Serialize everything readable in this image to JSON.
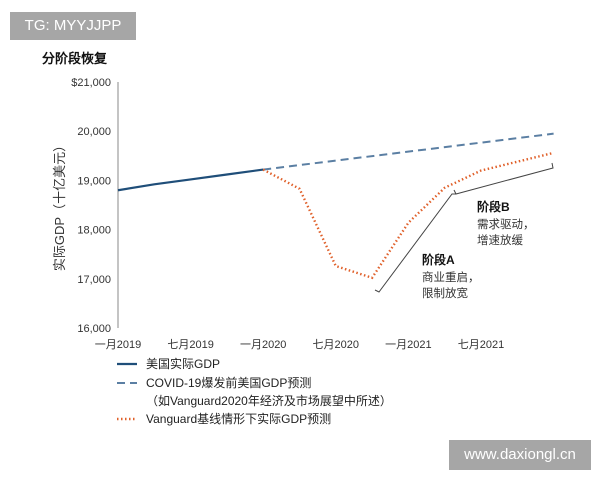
{
  "watermarks": {
    "top_left": "TG: MYYJJPP",
    "bottom_right": "www.daxiongl.cn"
  },
  "chart_data": {
    "type": "line",
    "title": "分阶段恢复",
    "ylabel": "实际GDP（十亿美元）",
    "xlabel": "",
    "ylim": [
      16000,
      21000
    ],
    "yticks": [
      "$21,000",
      "20,000",
      "19,000",
      "18,000",
      "17,000",
      "16,000"
    ],
    "ytick_values": [
      21000,
      20000,
      19000,
      18000,
      17000,
      16000
    ],
    "xticks": [
      "一月2019",
      "七月2019",
      "一月2020",
      "七月2020",
      "一月2021",
      "七月2021"
    ],
    "xtick_values": [
      "2019-01",
      "2019-07",
      "2020-01",
      "2020-07",
      "2021-01",
      "2021-07"
    ],
    "xlim": [
      "2019-01",
      "2022-01"
    ],
    "grid": false,
    "legend_position": "bottom",
    "series": [
      {
        "name": "美国实际GDP",
        "style": "solid",
        "color": "#1f4e79",
        "x": [
          "2019-01",
          "2019-04",
          "2019-07",
          "2019-10",
          "2020-01"
        ],
        "values": [
          18800,
          18920,
          19020,
          19120,
          19220
        ]
      },
      {
        "name": "COVID-19爆发前美国GDP预测",
        "name_line2": "（如Vanguard2020年经济及市场展望中所述）",
        "style": "dashed",
        "color": "#5b7fa3",
        "x": [
          "2020-01",
          "2022-01"
        ],
        "values": [
          19220,
          19950
        ]
      },
      {
        "name": "Vanguard基线情形下实际GDP预测",
        "style": "dotted",
        "color": "#e0602a",
        "x": [
          "2020-01",
          "2020-04",
          "2020-07",
          "2020-10",
          "2021-01",
          "2021-04",
          "2021-07",
          "2022-01"
        ],
        "values": [
          19220,
          18830,
          17260,
          17020,
          18140,
          18850,
          19200,
          19560
        ]
      }
    ],
    "annotations": [
      {
        "label": "阶段A",
        "line1": "商业重启，",
        "line2": "限制放宽"
      },
      {
        "label": "阶段B",
        "line1": "需求驱动，",
        "line2": "增速放缓"
      }
    ]
  }
}
